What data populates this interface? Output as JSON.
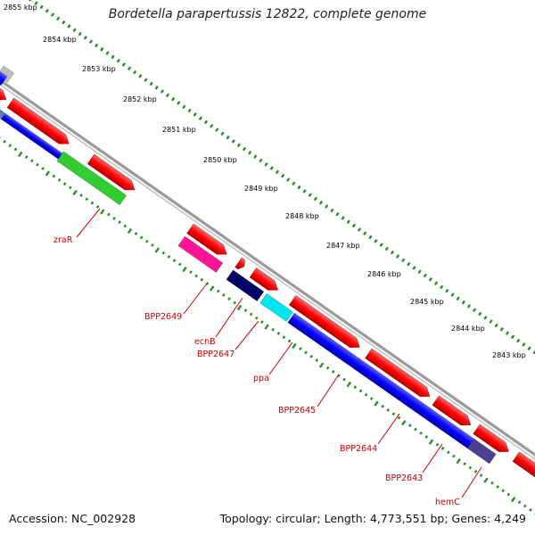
{
  "title": "Bordetella parapertussis 12822, complete genome",
  "footer": {
    "accession": "Accession: NC_002928",
    "summary": "Topology: circular; Length: 4,773,551 bp; Genes: 4,249"
  },
  "ruler": [
    "2855 kbp",
    "2854 kbp",
    "2853 kbp",
    "2852 kbp",
    "2851 kbp",
    "2850 kbp",
    "2849 kbp",
    "2848 kbp",
    "2847 kbp",
    "2846 kbp",
    "2845 kbp",
    "2844 kbp",
    "2843 kbp"
  ],
  "genes": [
    "zraR",
    "BPP2649",
    "ecnB",
    "BPP2647",
    "ppa",
    "BPP2645",
    "BPP2644",
    "BPP2643",
    "hemC"
  ],
  "colors": {
    "backbone": "#8c8c8c",
    "cds": "#ff0000",
    "gene": "#0000ff",
    "label": "#cc0000",
    "tick": "#2e8b2e",
    "green": "#33cc33",
    "magenta": "#ff1493",
    "navy": "#000066",
    "cyan": "#00e5ee",
    "purple": "#4b3f8f",
    "gray": "#bdbdbd",
    "steel": "#5b7fbf"
  }
}
